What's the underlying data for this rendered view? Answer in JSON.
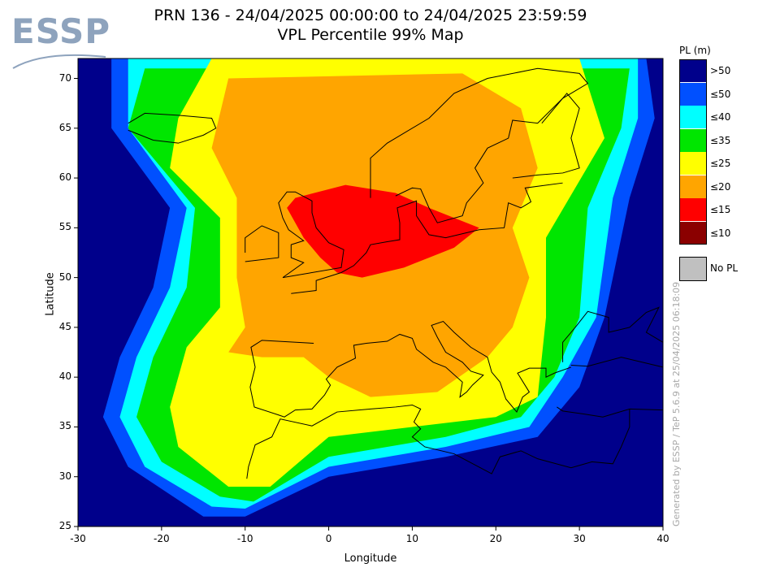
{
  "logo": {
    "text": "ESSP"
  },
  "title": {
    "line1": "PRN 136 - 24/04/2025 00:00:00 to 24/04/2025 23:59:59",
    "line2": "VPL Percentile 99% Map"
  },
  "axes": {
    "xlabel": "Longitude",
    "ylabel": "Latitude",
    "xticks": [
      "-30",
      "-20",
      "-10",
      "0",
      "10",
      "20",
      "30",
      "40"
    ],
    "yticks": [
      "70",
      "65",
      "60",
      "55",
      "50",
      "45",
      "40",
      "35",
      "30",
      "25"
    ],
    "xlim": [
      -30,
      40
    ],
    "ylim": [
      25,
      72
    ]
  },
  "legend": {
    "title": "PL (m)",
    "items": [
      {
        "label": ">50",
        "color": "#00008b"
      },
      {
        "label": "≤50",
        "color": "#0050ff"
      },
      {
        "label": "≤40",
        "color": "#00ffff"
      },
      {
        "label": "≤35",
        "color": "#00e600"
      },
      {
        "label": "≤25",
        "color": "#ffff00"
      },
      {
        "label": "≤20",
        "color": "#ffa500"
      },
      {
        "label": "≤15",
        "color": "#ff0000"
      },
      {
        "label": "≤10",
        "color": "#8b0000"
      }
    ],
    "nopl": {
      "label": "No PL",
      "color": "#c0c0c0"
    }
  },
  "credit": "Generated by ESSP / TeP 5.6.9 at 25/04/2025 06:18:09"
}
